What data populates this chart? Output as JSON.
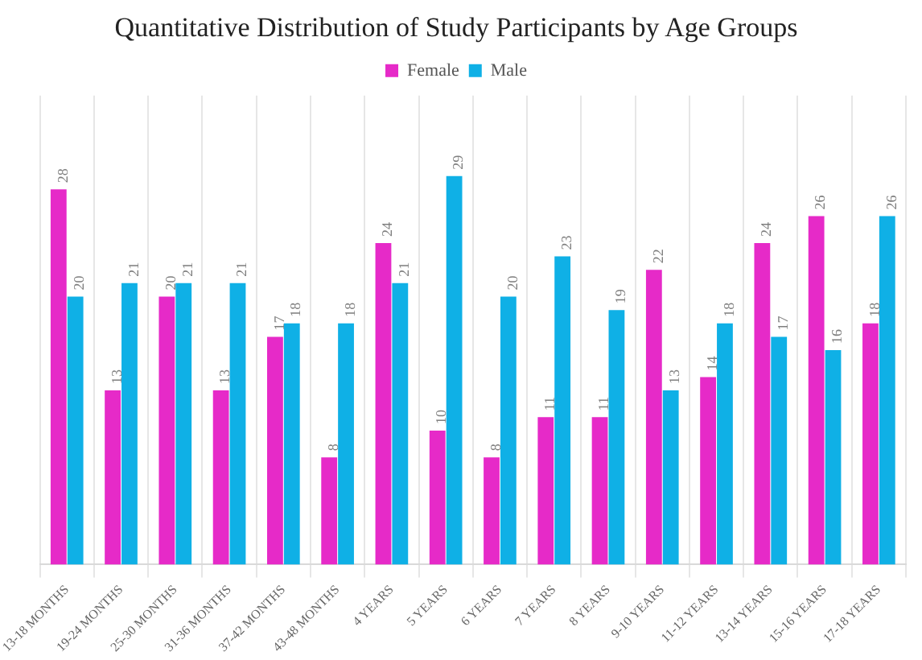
{
  "chart_data": {
    "type": "bar",
    "title": "Quantitative Distribution of Study Participants by Age Groups",
    "categories": [
      "13-18 MONTHS",
      "19-24 MONTHS",
      "25-30 MONTHS",
      "31-36 MONTHS",
      "37-42 MONTHS",
      "43-48 MONTHS",
      "4 YEARS",
      "5 YEARS",
      "6 YEARS",
      "7 YEARS",
      "8 YEARS",
      "9-10 YEARS",
      "11-12 YEARS",
      "13-14 YEARS",
      "15-16 YEARS",
      "17-18 YEARS"
    ],
    "series": [
      {
        "name": "Female",
        "color": "#e62ac8",
        "values": [
          28,
          13,
          20,
          13,
          17,
          8,
          24,
          10,
          8,
          11,
          11,
          22,
          14,
          24,
          26,
          18
        ]
      },
      {
        "name": "Male",
        "color": "#0fb0e6",
        "values": [
          20,
          21,
          21,
          21,
          18,
          18,
          21,
          29,
          20,
          23,
          19,
          13,
          18,
          17,
          16,
          26
        ]
      }
    ],
    "data_labels": true,
    "grid": "x",
    "legend": "top"
  }
}
